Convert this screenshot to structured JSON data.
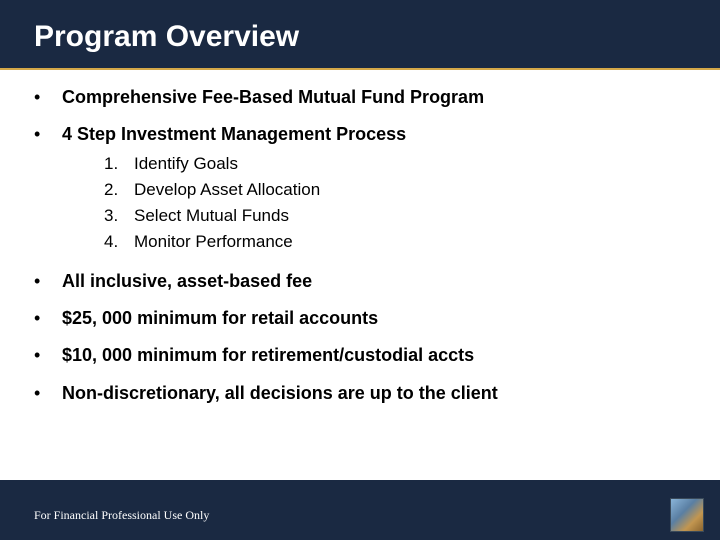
{
  "title": "Program Overview",
  "bullets": {
    "b0": "Comprehensive Fee-Based Mutual Fund Program",
    "b1": "4 Step Investment Management Process",
    "b2": "All inclusive, asset-based fee",
    "b3": "$25, 000 minimum for retail accounts",
    "b4": "$10, 000 minimum for retirement/custodial accts",
    "b5": "Non-discretionary, all decisions are up to the client"
  },
  "sub": {
    "n1": "1.",
    "n2": "2.",
    "n3": "3.",
    "n4": "4.",
    "s1": "Identify Goals",
    "s2": "Develop Asset Allocation",
    "s3": "Select Mutual Funds",
    "s4": "Monitor Performance"
  },
  "footer": "For Financial Professional Use Only",
  "colors": {
    "slide_bg": "#1a2942",
    "content_bg": "#ffffff",
    "accent_line": "#d4a849",
    "title_color": "#ffffff",
    "text_color": "#000000"
  },
  "typography": {
    "title_fontsize": 30,
    "bullet_fontsize": 18,
    "sub_fontsize": 17,
    "footer_fontsize": 12
  }
}
